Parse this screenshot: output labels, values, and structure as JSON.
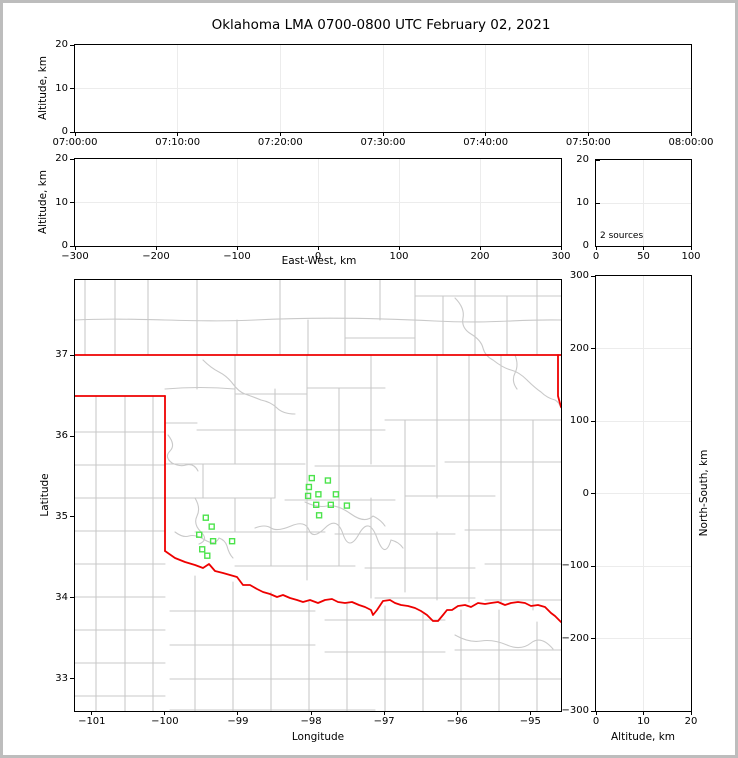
{
  "title": "Oklahoma LMA 0700-0800 UTC February 02, 2021",
  "colors": {
    "station_marker": "#4ce34c",
    "state_border": "#ee0000",
    "county_line": "#c9c9c9",
    "gridline": "#ececec",
    "axis": "#000000",
    "figure_frame": "#bdbdbd",
    "background": "#ffffff"
  },
  "chart_data": {
    "type": "scatter",
    "title": "Oklahoma LMA 0700-0800 UTC February 02, 2021",
    "description": "XLMA-style lightning mapping array display: time-height panel, east-west cross section, source-count histogram, plan-view map with LMA station markers, and north-south cross section. No VHF sources visible; 2 sources reported.",
    "sources_plotted": 2,
    "panels": [
      {
        "id": "alt_vs_time",
        "ylabel": "Altitude, km",
        "xlim": [
          0,
          60
        ],
        "ylim": [
          0,
          20
        ],
        "xtick_values": [
          0,
          10,
          20,
          30,
          40,
          50,
          60
        ],
        "xtick_labels": [
          "07:00:00",
          "07:10:00",
          "07:20:00",
          "07:30:00",
          "07:40:00",
          "07:50:00",
          "08:00:00"
        ],
        "ytick_values": [
          0,
          10,
          20
        ],
        "ytick_labels": [
          "0",
          "10",
          "20"
        ],
        "points": []
      },
      {
        "id": "alt_vs_eastwest",
        "xlabel": "East-West, km",
        "ylabel": "Altitude, km",
        "xlim": [
          -300,
          300
        ],
        "ylim": [
          0,
          20
        ],
        "xtick_values": [
          -300,
          -200,
          -100,
          0,
          100,
          200,
          300
        ],
        "xtick_labels": [
          "−300",
          "−200",
          "−100",
          "0",
          "100",
          "200",
          "300"
        ],
        "ytick_values": [
          0,
          10,
          20
        ],
        "ytick_labels": [
          "0",
          "10",
          "20"
        ],
        "points": []
      },
      {
        "id": "source_histogram",
        "annotation": "2 sources",
        "xlim": [
          0,
          100
        ],
        "ylim": [
          0,
          20
        ],
        "xtick_values": [
          0,
          50,
          100
        ],
        "xtick_labels": [
          "0",
          "50",
          "100"
        ],
        "ytick_values": [
          0,
          10,
          20
        ],
        "ytick_labels": [
          "0",
          "10",
          "20"
        ],
        "points": []
      },
      {
        "id": "plan_view_map",
        "xlabel": "Longitude",
        "ylabel": "Latitude",
        "xlim": [
          -101.23,
          -94.58
        ],
        "ylim": [
          32.6,
          37.93
        ],
        "xtick_values": [
          -101,
          -100,
          -99,
          -98,
          -97,
          -96,
          -95
        ],
        "xtick_labels": [
          "−101",
          "−100",
          "−99",
          "−98",
          "−97",
          "−96",
          "−95"
        ],
        "ytick_values": [
          33,
          34,
          35,
          36,
          37
        ],
        "ytick_labels": [
          "33",
          "34",
          "35",
          "36",
          "37"
        ],
        "stations_lon_lat": [
          [
            -97.99,
            35.48
          ],
          [
            -97.77,
            35.45
          ],
          [
            -98.03,
            35.37
          ],
          [
            -97.9,
            35.28
          ],
          [
            -98.04,
            35.26
          ],
          [
            -97.66,
            35.28
          ],
          [
            -97.93,
            35.15
          ],
          [
            -97.73,
            35.15
          ],
          [
            -97.51,
            35.14
          ],
          [
            -97.89,
            35.02
          ],
          [
            -99.44,
            34.99
          ],
          [
            -99.36,
            34.88
          ],
          [
            -99.53,
            34.78
          ],
          [
            -99.34,
            34.7
          ],
          [
            -99.08,
            34.7
          ],
          [
            -99.49,
            34.6
          ],
          [
            -99.42,
            34.52
          ]
        ],
        "points": []
      },
      {
        "id": "northsouth_vs_alt",
        "xlabel": "Altitude, km",
        "ylabel": "North-South, km",
        "xlim": [
          0,
          20
        ],
        "ylim": [
          -300,
          300
        ],
        "xtick_values": [
          0,
          10,
          20
        ],
        "xtick_labels": [
          "0",
          "10",
          "20"
        ],
        "ytick_values": [
          -300,
          -200,
          -100,
          0,
          100,
          200,
          300
        ],
        "ytick_labels": [
          "−300",
          "−200",
          "−100",
          "0",
          "100",
          "200",
          "300"
        ],
        "points": []
      }
    ]
  }
}
